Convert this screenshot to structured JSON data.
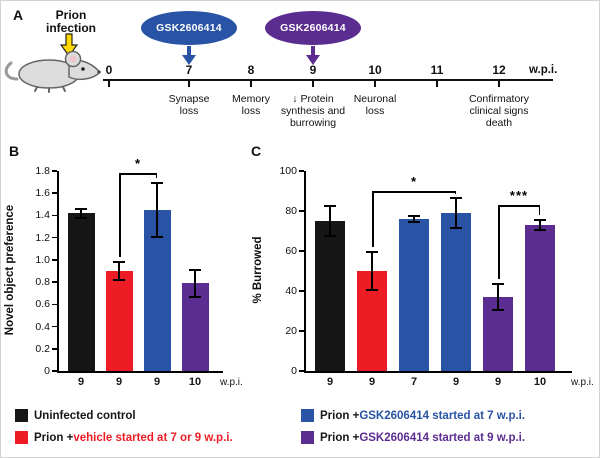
{
  "figure": {
    "panels": {
      "a": "A",
      "b": "B",
      "c": "C"
    }
  },
  "panelA": {
    "infection_label": "Prion\ninfection",
    "drugs": [
      {
        "label": "GSK2606414",
        "color": "#2953a4",
        "week": "7"
      },
      {
        "label": "GSK2606414",
        "color": "#5c2d91",
        "week": "9"
      }
    ],
    "timeline": {
      "tick_labels": [
        "0",
        "7",
        "8",
        "9",
        "10",
        "11",
        "12"
      ],
      "unit": "w.p.i.",
      "events": [
        {
          "week": "7",
          "text": "Synapse\nloss"
        },
        {
          "week": "8",
          "text": "Memory\nloss"
        },
        {
          "week": "9",
          "text": "↓ Protein\nsynthesis and\nburrowing"
        },
        {
          "week": "10",
          "text": "Neuronal\nloss"
        },
        {
          "week": "12",
          "text": "Confirmatory\nclinical signs\ndeath"
        }
      ]
    }
  },
  "chart_data": [
    {
      "id": "B",
      "type": "bar",
      "title": "",
      "ylabel": "Novel object preference",
      "ylim": [
        0,
        1.8
      ],
      "ytick_labels": [
        "0",
        "0.2",
        "0.4",
        "0.6",
        "0.8",
        "1.0",
        "1.2",
        "1.4",
        "1.6",
        "1.8"
      ],
      "categories": [
        "9",
        "9",
        "9",
        "10"
      ],
      "x_unit": "w.p.i.",
      "values": [
        1.42,
        0.9,
        1.45,
        0.79
      ],
      "errors": [
        0.05,
        0.09,
        0.25,
        0.13
      ],
      "bar_colors": [
        "#161616",
        "#ee1c25",
        "#2953a4",
        "#5c2d91"
      ],
      "grid": false,
      "significance": [
        {
          "x1": 1,
          "x2": 2,
          "y": 1.78,
          "label": "*"
        }
      ]
    },
    {
      "id": "C",
      "type": "bar",
      "title": "",
      "ylabel": "% Burrowed",
      "ylim": [
        0,
        100
      ],
      "ytick_labels": [
        "0",
        "20",
        "40",
        "60",
        "80",
        "100"
      ],
      "categories": [
        "9",
        "9",
        "7",
        "9",
        "9",
        "10"
      ],
      "x_unit": "w.p.i.",
      "values": [
        75,
        50,
        76,
        79,
        37,
        73
      ],
      "errors": [
        8,
        10,
        2,
        8,
        7,
        3
      ],
      "bar_colors": [
        "#161616",
        "#ee1c25",
        "#2953a4",
        "#2953a4",
        "#5c2d91",
        "#5c2d91"
      ],
      "grid": false,
      "significance": [
        {
          "x1": 1,
          "x2": 3,
          "y": 90,
          "label": "*"
        },
        {
          "x1": 4,
          "x2": 5,
          "y": 83,
          "label": "***"
        }
      ]
    }
  ],
  "legend": {
    "items": [
      {
        "swatch": "#161616",
        "parts": [
          {
            "text": "Uninfected control",
            "color": "#161616"
          }
        ]
      },
      {
        "swatch": "#ee1c25",
        "parts": [
          {
            "text": "Prion + ",
            "color": "#161616"
          },
          {
            "text": "vehicle started at 7 or 9 w.p.i.",
            "color": "#ee1c25"
          }
        ]
      },
      {
        "swatch": "#2953a4",
        "parts": [
          {
            "text": "Prion + ",
            "color": "#161616"
          },
          {
            "text": "GSK2606414 started at 7 w.p.i.",
            "color": "#2953a4"
          }
        ]
      },
      {
        "swatch": "#5c2d91",
        "parts": [
          {
            "text": "Prion + ",
            "color": "#161616"
          },
          {
            "text": "GSK2606414 started at 9 w.p.i.",
            "color": "#5c2d91"
          }
        ]
      }
    ]
  }
}
